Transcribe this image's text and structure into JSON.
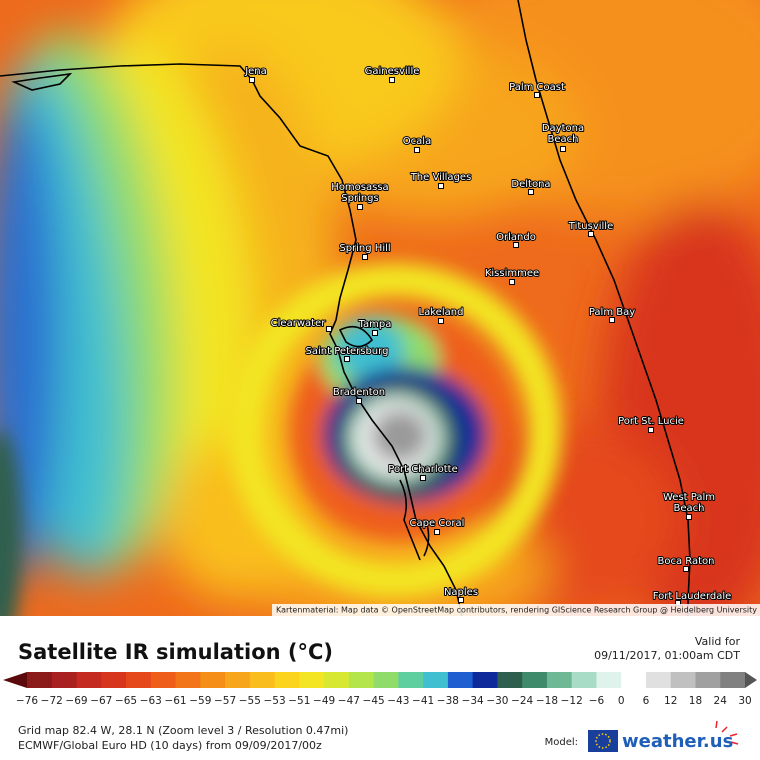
{
  "map": {
    "cities": [
      {
        "lines": [
          "Jena"
        ]
      },
      {
        "lines": [
          "Gainesville"
        ]
      },
      {
        "lines": [
          "Palm Coast"
        ]
      },
      {
        "lines": [
          "Daytona",
          "Beach"
        ]
      },
      {
        "lines": [
          "Ocala"
        ]
      },
      {
        "lines": [
          "The Villages"
        ]
      },
      {
        "lines": [
          "Deltona"
        ]
      },
      {
        "lines": [
          "Homosassa",
          "Springs"
        ]
      },
      {
        "lines": [
          "Titusville"
        ]
      },
      {
        "lines": [
          "Orlando"
        ]
      },
      {
        "lines": [
          "Spring Hill"
        ]
      },
      {
        "lines": [
          "Kissimmee"
        ]
      },
      {
        "lines": [
          "Lakeland"
        ]
      },
      {
        "lines": [
          "Palm Bay"
        ]
      },
      {
        "lines": [
          "Clearwater"
        ]
      },
      {
        "lines": [
          "Tampa"
        ]
      },
      {
        "lines": [
          "Saint Petersburg"
        ]
      },
      {
        "lines": [
          "Bradenton"
        ]
      },
      {
        "lines": [
          "Port St. Lucie"
        ]
      },
      {
        "lines": [
          "Port Charlotte"
        ]
      },
      {
        "lines": [
          "West Palm",
          "Beach"
        ]
      },
      {
        "lines": [
          "Cape Coral"
        ]
      },
      {
        "lines": [
          "Boca Raton"
        ]
      },
      {
        "lines": [
          "Naples"
        ]
      },
      {
        "lines": [
          "Fort Lauderdale"
        ]
      }
    ],
    "attribution": "Kartenmaterial: Map data © OpenStreetMap contributors, rendering GIScience Research Group @ Heidelberg University"
  },
  "legend": {
    "title": "Satellite IR simulation (°C)",
    "valid_label": "Valid for",
    "valid_time": "09/11/2017, 01:00am CDT",
    "labels": [
      "−76",
      "−72",
      "−69",
      "−67",
      "−65",
      "−63",
      "−61",
      "−59",
      "−57",
      "−55",
      "−53",
      "−51",
      "−49",
      "−47",
      "−45",
      "−43",
      "−41",
      "−38",
      "−34",
      "−30",
      "−24",
      "−18",
      "−12",
      "−6",
      "0",
      "6",
      "12",
      "18",
      "24",
      "30"
    ],
    "colors": [
      "#5a0a0a",
      "#8b1a1a",
      "#a82020",
      "#c42a1f",
      "#d8361c",
      "#e5481a",
      "#ee5d1a",
      "#f27519",
      "#f58d19",
      "#f7a61b",
      "#f9be1d",
      "#fad41f",
      "#f3e524",
      "#d6e832",
      "#b4e54a",
      "#8fdc6a",
      "#5fcfa0",
      "#3fbfd0",
      "#1f5fd0",
      "#0e2a9a",
      "#2e5e4e",
      "#3f8a6a",
      "#6fb896",
      "#a8dcc6",
      "#dff2ec",
      "#ffffff",
      "#e0e0e0",
      "#c0c0c0",
      "#a0a0a0",
      "#808080",
      "#555555"
    ]
  },
  "footer": {
    "grid": "Grid map 82.4 W, 28.1 N (Zoom level 3 / Resolution 0.47mi)",
    "model_run": "ECMWF/Global Euro HD (10 days) from 09/09/2017/00z",
    "model_label": "Model:",
    "brand": "weather.us"
  }
}
